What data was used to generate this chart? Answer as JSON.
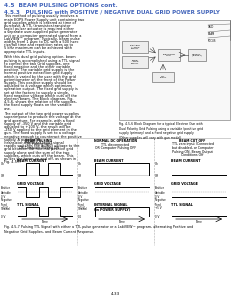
{
  "title1": "4.5  BEAM PULSING OPTIONS cont.",
  "title2": "4.5.3   PULSING with POSITIVE / NEGATIVE DUAL GRID POWER SUPPLY",
  "para1": "This method of pulsing usually involves a main EOPS Power Supply unit containing two grid supplies which is ordered at time of purchase.  A TTL (transistor-transistor logic) pulser actuator is required either a separate user-supplied pulse generator unit or a computer generated signal from a LabVIEW™ program.  Typically, beam pulse widths from 1 μsec to DC with a 500 nsec rise/fall time and repetition rates up to 5 kHz maximum can be achieved with appropriate TTL inputs.",
  "para2": "With this dual grid pulsing option, beam pulsing is accomplished using a TTL signal to control the two Grid supplies, one fixed negative and the other variable positive. The variable grid supply is the normal positive extraction grid supply which is varied by the user with the grid potentiometer on the front of the Power Supply.  This positive supply should be adjusted to a voltage which optimizes operation output. The fixed grid supply is set at the factory to supply a single, fixed negative voltage which cuts off the electron beam.  The block diagram, Fig. 4.5-6, shows the relation of the supplies, the fixed supply floats on the variable one.",
  "para3": "The output of the two grid power supplies superimpose to produce the voltage at the grid aperture.  For example, with a fixed supply of -350 V and the variable grid adjusted to +100 V, the result will be -250 V applied to the grid element in the gun.  The fixed supply is set to a voltage negative enough to counteract the positive supply.  A pulsing TTL (transistor-transistor-logic) signal rapidly switches the output voltage to the grid between the nominal positive grid supply alone and the sum of the two supplies, which cuts off the beam.  This pulses the beam on and off, as shown in Fig. 4.5.7.",
  "fig_caption": "Fig. 4.5-6 Block Diagram for a typical Electron Gun with\nDual Polarity Grid Pulsing using a variable (positive grid\nsupply (primary) and a fixed negative grid supply.\n(Other supplies will vary with gun model)",
  "col1_title_line1": "BEAM PULSING",
  "col1_title_line2": "TTL Pulsing Input",
  "col1_title_line3": "OR Computer Pulsing ON",
  "col2_title_line1": "NORMAL DC OPERATION",
  "col2_title_line2": "TTL disconnected",
  "col2_title_line3": "OR Computer Pulsing OFF",
  "col3_title_line1": "BEAM CUT OFF",
  "col3_title_line2": "TTL zero input (Connected",
  "col3_title_line3": "but disabled, or Computer",
  "col3_title_line4": "Pulsing ON, Beam Output",
  "col3_title_line5": "Conditions Off",
  "beam_label": "BEAM CURRENT",
  "grid_label1": "GRID VOLTAGE",
  "grid_label2": "GRID VOLTAGE",
  "grid_label3": "GRID VOLTAGE",
  "ttl_label1": "TTL SIGNAL",
  "ttl_label2": "INTERNAL SIGNAL\n(in POWER SUPPLY)",
  "ttl_label3": "TTL SIGNAL",
  "on_label": "On",
  "off_label": "Off",
  "pos_var": "Positive\nVariable\n0 V",
  "neg_fixed1": "Negative\nFixed\n(-value)",
  "neg_fixed2": "Negative\nFixed\n(-value)",
  "neg_fixed3": "Negative\nFixed",
  "ttl_hi": "+5 V",
  "ttl_lo_1": "0 V",
  "ttl_lo_2": "0.0",
  "ttl_lo_3": "0 V",
  "time_arrow": "Time",
  "fig_bottom": "Fig. 4.5-7 Pulsing TTL Signal with either a TTL pulse generator or a LabVIEW™ program, alternating Positive and\nNegative Grid Supplies, and Beam Current Response.",
  "page_num": "4-33",
  "bg": "#ffffff",
  "fg": "#000000",
  "title_color": "#4466bb",
  "wave_color": "#000000",
  "divider_color": "#aaaaaa"
}
